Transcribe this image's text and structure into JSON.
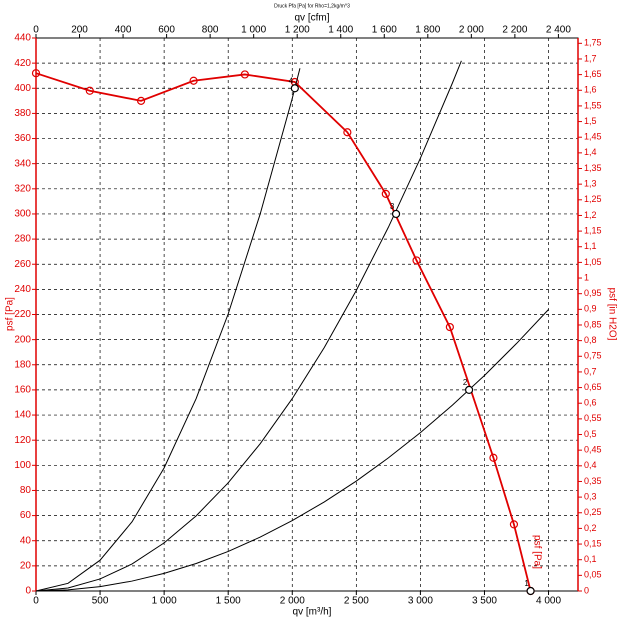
{
  "chart_data": {
    "type": "line",
    "title": "Druck Pfa [Pa] for Rho=1,2kg/m^3",
    "xlabel": "qv [m³/h]",
    "x2label": "qv [cfm]",
    "ylabel": "psf [Pa]",
    "y2label": "psf [in H2O]",
    "curve_label": "psf [Pa]",
    "xlim": [
      0,
      4230
    ],
    "x2lim": [
      0,
      2490
    ],
    "ylim": [
      0,
      440
    ],
    "y2lim": [
      0,
      1.767
    ],
    "grid": true,
    "xticks": [
      0,
      500,
      {
        "value": 1000,
        "label": "1 000"
      },
      {
        "value": 1500,
        "label": "1 500"
      },
      {
        "value": 2000,
        "label": "2 000"
      },
      {
        "value": 2500,
        "label": "2 500"
      },
      {
        "value": 3000,
        "label": "3 000"
      },
      {
        "value": 3500,
        "label": "3 500"
      },
      {
        "value": 4000,
        "label": "4 000"
      }
    ],
    "x2ticks": [
      0,
      200,
      400,
      600,
      800,
      {
        "value": 1000,
        "label": "1 000"
      },
      {
        "value": 1200,
        "label": "1 200"
      },
      {
        "value": 1400,
        "label": "1 400"
      },
      {
        "value": 1600,
        "label": "1 600"
      },
      {
        "value": 1800,
        "label": "1 800"
      },
      {
        "value": 2000,
        "label": "2 000"
      },
      {
        "value": 2200,
        "label": "2 200"
      },
      {
        "value": 2400,
        "label": "2 400"
      }
    ],
    "yticks": [
      0,
      20,
      40,
      60,
      80,
      100,
      120,
      140,
      160,
      180,
      200,
      220,
      240,
      260,
      280,
      300,
      320,
      340,
      360,
      380,
      400,
      420,
      440
    ],
    "y2ticks": [
      0,
      {
        "value": 0.05,
        "label": "0,05"
      },
      {
        "value": 0.1,
        "label": "0,1"
      },
      {
        "value": 0.15,
        "label": "0,15"
      },
      {
        "value": 0.2,
        "label": "0,2"
      },
      {
        "value": 0.25,
        "label": "0,25"
      },
      {
        "value": 0.3,
        "label": "0,3"
      },
      {
        "value": 0.35,
        "label": "0,35"
      },
      {
        "value": 0.4,
        "label": "0,4"
      },
      {
        "value": 0.45,
        "label": "0,45"
      },
      {
        "value": 0.5,
        "label": "0,5"
      },
      {
        "value": 0.55,
        "label": "0,55"
      },
      {
        "value": 0.6,
        "label": "0,6"
      },
      {
        "value": 0.65,
        "label": "0,65"
      },
      {
        "value": 0.7,
        "label": "0,7"
      },
      {
        "value": 0.75,
        "label": "0,75"
      },
      {
        "value": 0.8,
        "label": "0,8"
      },
      {
        "value": 0.85,
        "label": "0,85"
      },
      {
        "value": 0.9,
        "label": "0,9"
      },
      {
        "value": 0.95,
        "label": "0,95"
      },
      1,
      {
        "value": 1.05,
        "label": "1,05"
      },
      {
        "value": 1.1,
        "label": "1,1"
      },
      {
        "value": 1.15,
        "label": "1,15"
      },
      {
        "value": 1.2,
        "label": "1,2"
      },
      {
        "value": 1.25,
        "label": "1,25"
      },
      {
        "value": 1.3,
        "label": "1,3"
      },
      {
        "value": 1.35,
        "label": "1,35"
      },
      {
        "value": 1.4,
        "label": "1,4"
      },
      {
        "value": 1.45,
        "label": "1,45"
      },
      {
        "value": 1.5,
        "label": "1,5"
      },
      {
        "value": 1.55,
        "label": "1,55"
      },
      {
        "value": 1.6,
        "label": "1,6"
      },
      {
        "value": 1.65,
        "label": "1,65"
      },
      {
        "value": 1.7,
        "label": "1,7"
      },
      {
        "value": 1.75,
        "label": "1,75"
      }
    ],
    "series": [
      {
        "color": "#e00000",
        "markers": true,
        "x": [
          0,
          420,
          820,
          1230,
          1630,
          2020,
          2430,
          2730,
          2970,
          3230,
          3570,
          3730,
          3860
        ],
        "values": [
          412,
          398,
          390,
          406,
          411,
          405,
          365,
          316,
          263,
          210,
          106,
          53,
          0
        ]
      },
      {
        "color": "#000000",
        "x": [
          0,
          250,
          500,
          750,
          1000,
          1250,
          1500,
          1750,
          2000,
          2060
        ],
        "values": [
          0,
          6.1,
          24.5,
          55.1,
          98,
          153.1,
          220.5,
          300.1,
          392,
          415.9
        ]
      },
      {
        "color": "#000000",
        "x": [
          0,
          250,
          500,
          750,
          1000,
          1250,
          1500,
          1750,
          2000,
          2250,
          2500,
          2750,
          3000,
          3250,
          3320
        ],
        "values": [
          0,
          2.4,
          9.6,
          21.5,
          38.3,
          59.8,
          86.1,
          117.2,
          153.1,
          193.7,
          239.2,
          289.4,
          344.4,
          404.2,
          421.8
        ]
      },
      {
        "color": "#000000",
        "x": [
          0,
          250,
          500,
          750,
          1000,
          1250,
          1500,
          1750,
          2000,
          2250,
          2500,
          2750,
          3000,
          3250,
          3500,
          3750,
          4000
        ],
        "values": [
          0,
          0.9,
          3.5,
          7.9,
          14,
          21.9,
          31.5,
          42.9,
          56,
          70.9,
          87.5,
          105.9,
          126,
          147.9,
          171.5,
          196.9,
          224
        ]
      }
    ],
    "points": {
      "labels": [
        "4",
        "3",
        "2",
        "1"
      ],
      "x": [
        2020,
        2810,
        3380,
        3860
      ],
      "values": [
        400,
        300,
        160,
        0
      ]
    }
  }
}
